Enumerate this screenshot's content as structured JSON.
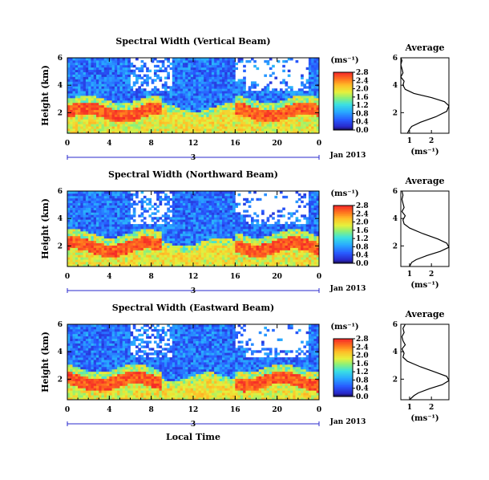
{
  "figure": {
    "xlabel": "Local Time",
    "date_label": "3",
    "month_label": "Jan 2013",
    "colorbar_unit": "(ms⁻¹)",
    "avg_title": "Average",
    "avg_xlabel": "(ms⁻¹)"
  },
  "chart_data": [
    {
      "type": "heatmap",
      "title": "Spectral Width (Vertical Beam)",
      "ylabel": "Height (km)",
      "x_ticks": [
        "0",
        "4",
        "8",
        "12",
        "16",
        "20",
        "0"
      ],
      "y_ticks": [
        "2",
        "4",
        "6"
      ],
      "xlim": [
        0,
        24
      ],
      "ylim": [
        0.5,
        6.0
      ],
      "colorbar": {
        "ticks": [
          "0.0",
          "0.4",
          "0.8",
          "1.2",
          "1.6",
          "2.0",
          "2.4",
          "2.8"
        ],
        "range": [
          0,
          2.8
        ]
      },
      "profile": {
        "type": "line",
        "title": "Average",
        "x_ticks": [
          "1",
          "2"
        ],
        "y_ticks": [
          "2",
          "4",
          "6"
        ],
        "xlim": [
          0.6,
          2.8
        ],
        "ylim": [
          0.5,
          6.0
        ],
        "x": [
          0.9,
          1.0,
          1.1,
          1.5,
          2.2,
          2.7,
          2.8,
          2.6,
          2.0,
          1.2,
          0.8,
          0.7,
          0.75,
          0.6,
          0.7,
          0.65,
          0.6,
          0.65,
          0.6
        ],
        "y": [
          0.5,
          0.8,
          1.0,
          1.3,
          1.7,
          2.1,
          2.5,
          2.8,
          3.1,
          3.4,
          3.7,
          4.0,
          4.3,
          4.6,
          4.9,
          5.2,
          5.5,
          5.8,
          6.0
        ]
      },
      "series_cells": "spectral width field"
    },
    {
      "type": "heatmap",
      "title": "Spectral Width (Northward Beam)",
      "ylabel": "Height (km)",
      "x_ticks": [
        "0",
        "4",
        "8",
        "12",
        "16",
        "20",
        "0"
      ],
      "y_ticks": [
        "2",
        "4",
        "6"
      ],
      "xlim": [
        0,
        24
      ],
      "ylim": [
        0.5,
        6.0
      ],
      "colorbar": {
        "ticks": [
          "0.0",
          "0.4",
          "0.8",
          "1.2",
          "1.6",
          "2.0",
          "2.4",
          "2.8"
        ],
        "range": [
          0,
          2.8
        ]
      },
      "profile": {
        "type": "line",
        "title": "Average",
        "x_ticks": [
          "1",
          "2"
        ],
        "y_ticks": [
          "2",
          "4",
          "6"
        ],
        "xlim": [
          0.6,
          2.8
        ],
        "ylim": [
          0.5,
          6.0
        ],
        "x": [
          1.0,
          1.1,
          1.3,
          1.8,
          2.4,
          2.8,
          2.7,
          2.3,
          1.6,
          1.0,
          0.75,
          0.7,
          0.8,
          0.65,
          0.75,
          0.7,
          0.65,
          0.7,
          0.65
        ],
        "y": [
          0.5,
          0.8,
          1.0,
          1.3,
          1.6,
          1.9,
          2.2,
          2.5,
          2.9,
          3.3,
          3.6,
          3.9,
          4.2,
          4.5,
          4.8,
          5.1,
          5.4,
          5.7,
          6.0
        ]
      },
      "series_cells": "spectral width field"
    },
    {
      "type": "heatmap",
      "title": "Spectral Width (Eastward Beam)",
      "ylabel": "Height (km)",
      "x_ticks": [
        "0",
        "4",
        "8",
        "12",
        "16",
        "20",
        "0"
      ],
      "y_ticks": [
        "2",
        "4",
        "6"
      ],
      "xlim": [
        0,
        24
      ],
      "ylim": [
        0.5,
        6.0
      ],
      "colorbar": {
        "ticks": [
          "0.0",
          "0.4",
          "0.8",
          "1.2",
          "1.6",
          "2.0",
          "2.4",
          "2.8"
        ],
        "range": [
          0,
          2.8
        ]
      },
      "profile": {
        "type": "line",
        "title": "Average",
        "x_ticks": [
          "1",
          "2"
        ],
        "y_ticks": [
          "2",
          "4",
          "6"
        ],
        "xlim": [
          0.6,
          2.8
        ],
        "ylim": [
          0.5,
          6.0
        ],
        "x": [
          1.0,
          1.2,
          1.4,
          1.9,
          2.5,
          2.8,
          2.7,
          2.2,
          1.5,
          0.9,
          0.7,
          0.75,
          0.65,
          0.8,
          0.7,
          0.65,
          0.75,
          0.7,
          0.8
        ],
        "y": [
          0.5,
          0.8,
          1.0,
          1.3,
          1.6,
          1.9,
          2.2,
          2.5,
          2.9,
          3.3,
          3.6,
          3.9,
          4.2,
          4.5,
          4.8,
          5.1,
          5.4,
          5.7,
          6.0
        ]
      },
      "series_cells": "spectral width field"
    }
  ]
}
